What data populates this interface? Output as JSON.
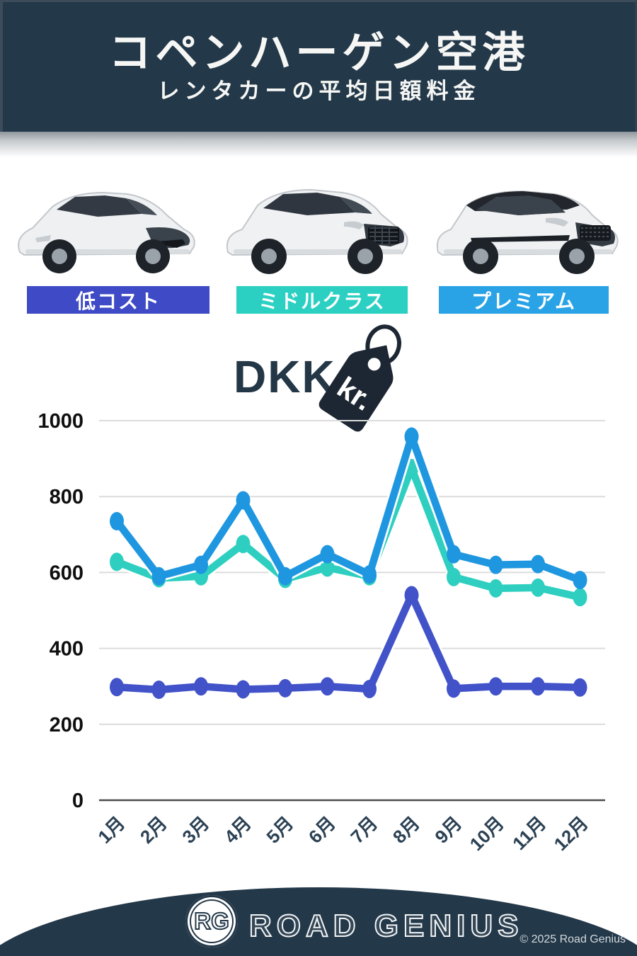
{
  "header": {
    "title": "コペンハーゲン空港",
    "subtitle": "レンタカーの平均日額料金"
  },
  "categories": [
    {
      "label": "低コスト",
      "color": "#3e4ac6"
    },
    {
      "label": "ミドルクラス",
      "color": "#2bd0c3"
    },
    {
      "label": "プレミアム",
      "color": "#2aa3e6"
    }
  ],
  "currency": {
    "code": "DKK",
    "tag_label": "kr."
  },
  "chart_data": {
    "type": "line",
    "x": [
      "1月",
      "2月",
      "3月",
      "4月",
      "5月",
      "6月",
      "7月",
      "8月",
      "9月",
      "10月",
      "11月",
      "12月"
    ],
    "series": [
      {
        "name": "低コスト",
        "color": "#4253c9",
        "values": [
          298,
          291,
          300,
          292,
          295,
          300,
          293,
          540,
          294,
          300,
          300,
          297
        ]
      },
      {
        "name": "ミドルクラス",
        "color": "#2ecfc0",
        "values": [
          628,
          585,
          590,
          675,
          583,
          613,
          590,
          875,
          588,
          558,
          560,
          535
        ]
      },
      {
        "name": "プレミアム",
        "color": "#1f97e0",
        "values": [
          735,
          590,
          620,
          790,
          590,
          648,
          595,
          958,
          648,
          620,
          622,
          580
        ]
      }
    ],
    "ylim": [
      0,
      1000
    ],
    "yticks": [
      0,
      200,
      400,
      600,
      800,
      1000
    ],
    "grid": true,
    "legend_position": "chips-above-chart",
    "title": "コペンハーゲン空港 レンタカーの平均日額料金 (DKK kr.)"
  },
  "footer": {
    "logo_initials": "RG",
    "brand": "ROAD GENIUS",
    "copyright": "© 2025 Road Genius"
  }
}
